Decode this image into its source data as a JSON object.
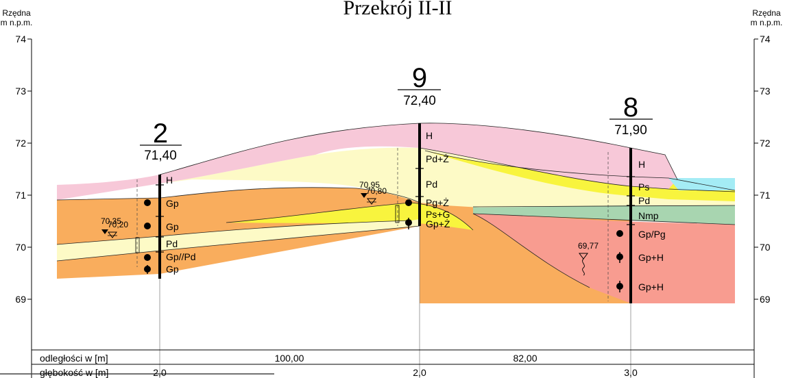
{
  "title": "Przekrój II-II",
  "axis": {
    "label_line1": "Rzędna",
    "label_line2": "m n.p.m.",
    "ticks": [
      "74",
      "73",
      "72",
      "71",
      "70",
      "69"
    ],
    "range": [
      68.1,
      74.1
    ]
  },
  "boreholes": [
    {
      "id": "2",
      "elevation": "71,40",
      "depth": "2,0",
      "samples": [
        "H",
        "Gp",
        "Gp",
        "Pd",
        "Gp//Pd",
        "Gp"
      ],
      "water": [
        "70,35",
        "70,20"
      ]
    },
    {
      "id": "9",
      "elevation": "72,40",
      "depth": "2,0",
      "samples": [
        "H",
        "Pd+Ż",
        "Pd",
        "Pg+Ż",
        "Ps+G",
        "Gp+Ż"
      ],
      "water": [
        "70,95",
        "70,80"
      ]
    },
    {
      "id": "8",
      "elevation": "71,90",
      "depth": "3,0",
      "samples": [
        "H",
        "Ps",
        "Pd",
        "Nmp",
        "Gp/Pg",
        "Gp+H",
        "Gp+H"
      ],
      "water": [
        "69,77"
      ]
    }
  ],
  "table": {
    "row1_label": "odległości w [m]",
    "row2_label": "głębokość w [m]",
    "distances": [
      "100,00",
      "82,00"
    ]
  },
  "colors": {
    "H": "#f7c8d8",
    "Pd": "#fdfac6",
    "Gp": "#f9ad5d",
    "Ps": "#f8f43e",
    "Nmp": "#a8d5b0",
    "GpH": "#f89c90",
    "water": "#a4ecf5"
  }
}
